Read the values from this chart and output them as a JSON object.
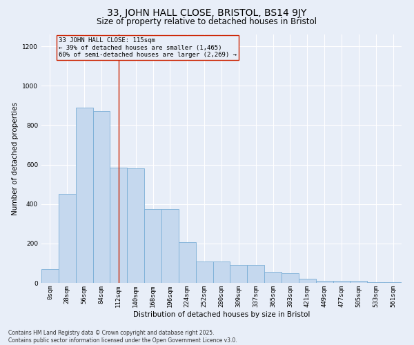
{
  "title": "33, JOHN HALL CLOSE, BRISTOL, BS14 9JY",
  "subtitle": "Size of property relative to detached houses in Bristol",
  "xlabel": "Distribution of detached houses by size in Bristol",
  "ylabel": "Number of detached properties",
  "bins": [
    "0sqm",
    "28sqm",
    "56sqm",
    "84sqm",
    "112sqm",
    "140sqm",
    "168sqm",
    "196sqm",
    "224sqm",
    "252sqm",
    "280sqm",
    "309sqm",
    "337sqm",
    "365sqm",
    "393sqm",
    "421sqm",
    "449sqm",
    "477sqm",
    "505sqm",
    "533sqm",
    "561sqm"
  ],
  "values": [
    70,
    450,
    890,
    870,
    585,
    580,
    375,
    375,
    205,
    110,
    110,
    90,
    90,
    55,
    50,
    22,
    10,
    12,
    10,
    5,
    5
  ],
  "bar_color": "#c5d8ee",
  "bar_edge_color": "#7aaed6",
  "bar_edge_width": 0.6,
  "vline_x_index": 4,
  "vline_color": "#cc2200",
  "annotation_text": "33 JOHN HALL CLOSE: 115sqm\n← 39% of detached houses are smaller (1,465)\n60% of semi-detached houses are larger (2,269) →",
  "annotation_box_edge_color": "#cc2200",
  "ylim": [
    0,
    1260
  ],
  "yticks": [
    0,
    200,
    400,
    600,
    800,
    1000,
    1200
  ],
  "bg_color": "#e8eef8",
  "footer_text": "Contains HM Land Registry data © Crown copyright and database right 2025.\nContains public sector information licensed under the Open Government Licence v3.0.",
  "title_fontsize": 10,
  "subtitle_fontsize": 8.5,
  "axis_label_fontsize": 7.5,
  "tick_fontsize": 6.5,
  "annotation_fontsize": 6.5,
  "footer_fontsize": 5.5
}
